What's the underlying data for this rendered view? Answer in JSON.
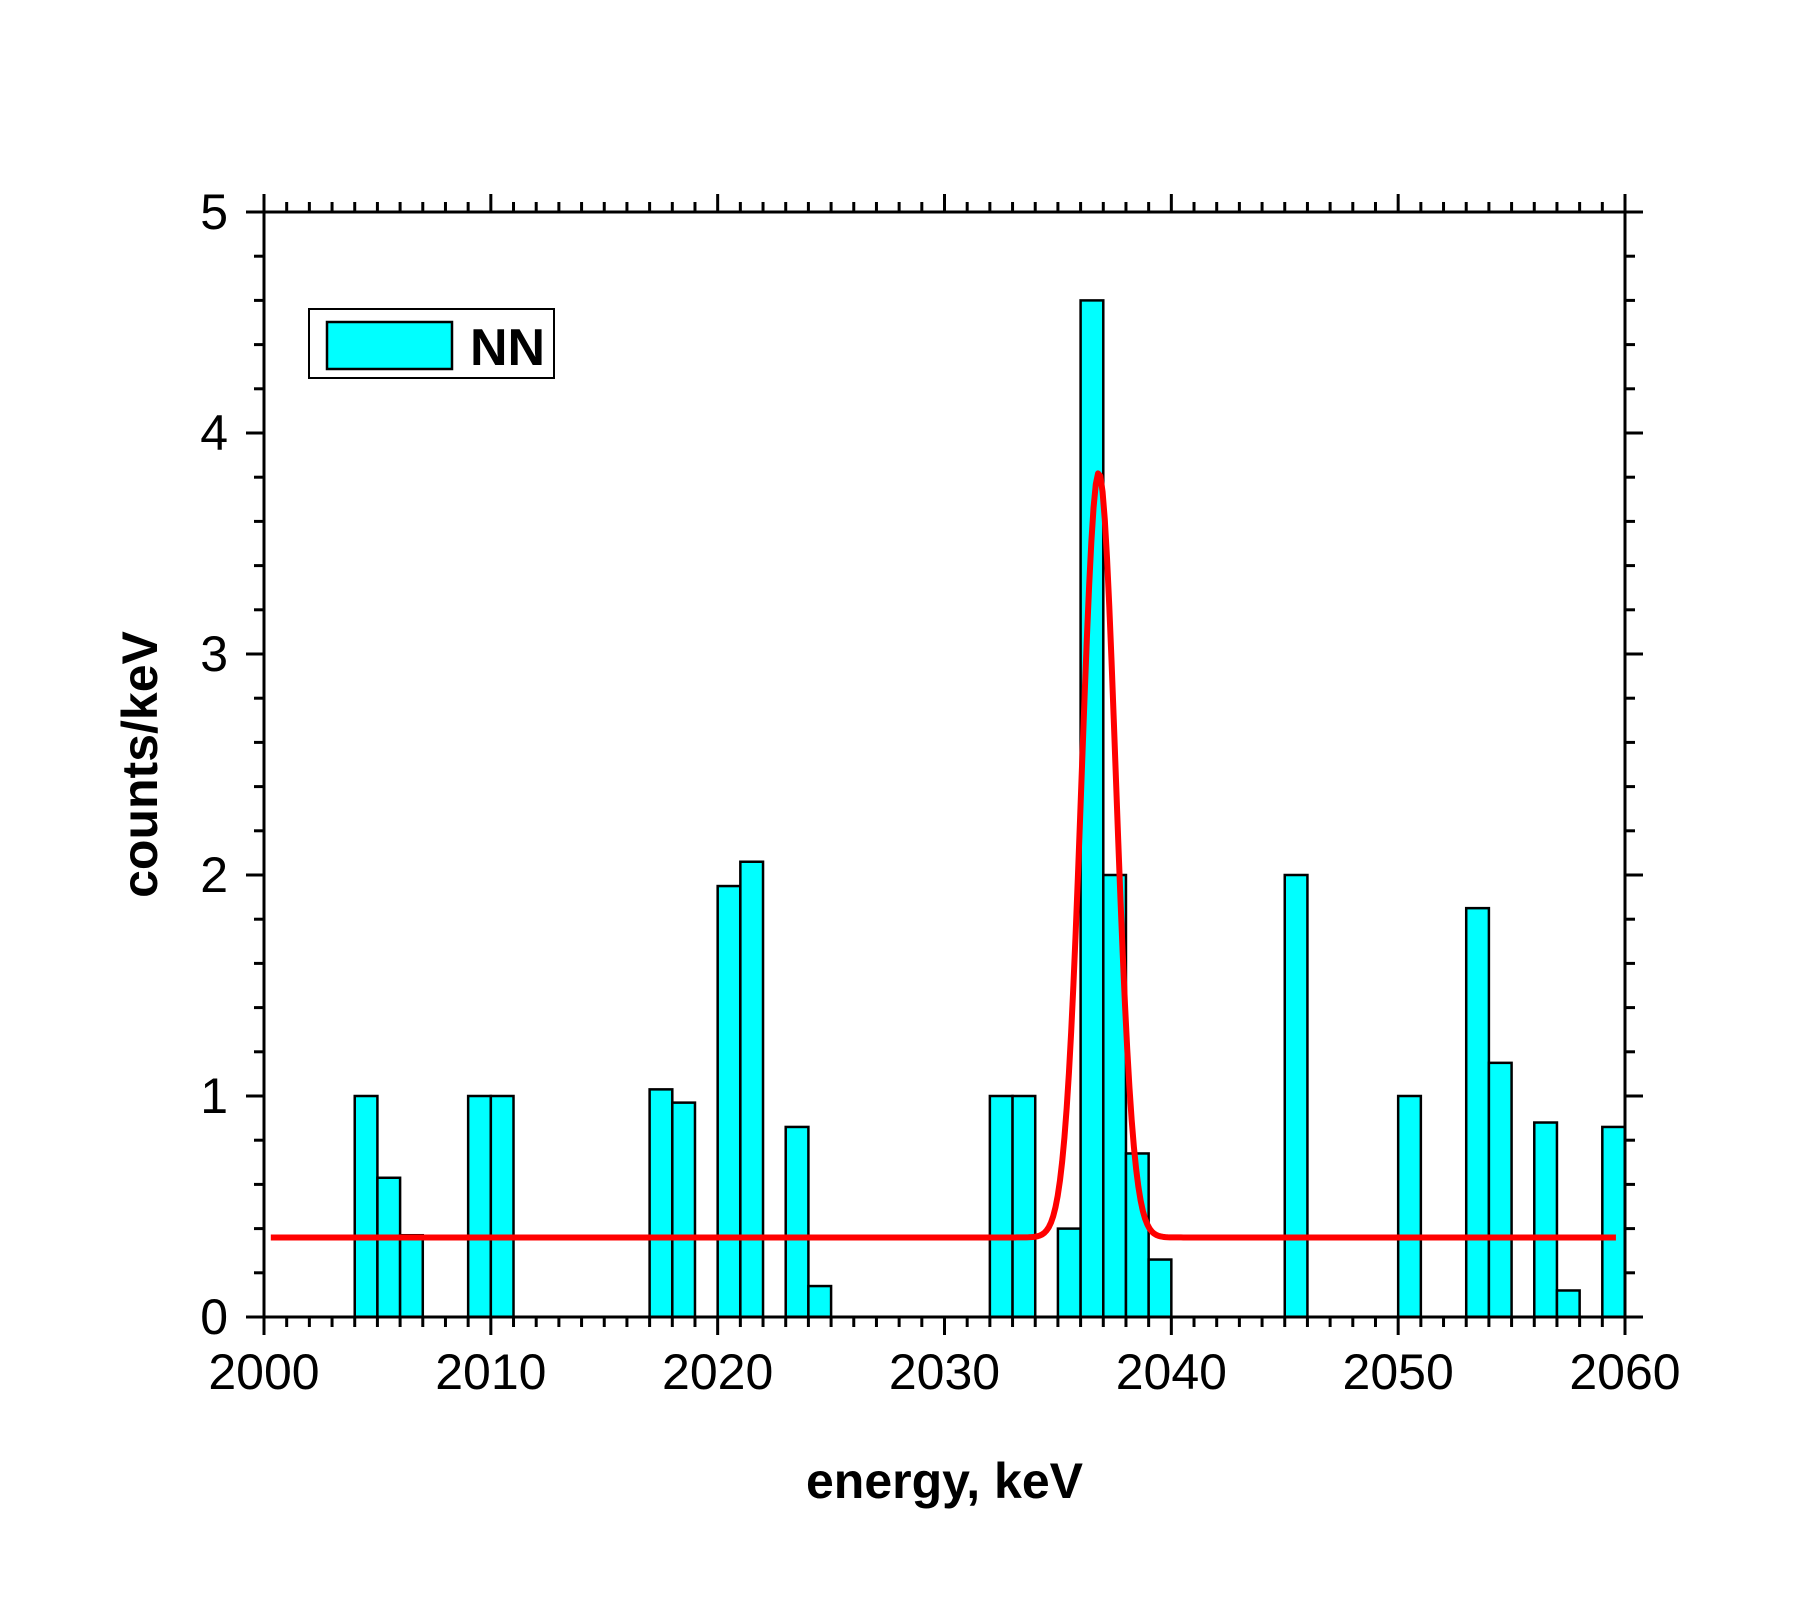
{
  "chart_data": {
    "type": "bar",
    "title": "",
    "xlabel": "energy, keV",
    "ylabel": "counts/keV",
    "xlim": [
      2000,
      2060
    ],
    "ylim": [
      0,
      5
    ],
    "x_ticks": [
      2000,
      2010,
      2020,
      2030,
      2040,
      2050,
      2060
    ],
    "x_tick_labels": [
      "2000",
      "2010",
      "2020",
      "2030",
      "2040",
      "2050",
      "2060"
    ],
    "y_ticks": [
      0,
      1,
      2,
      3,
      4,
      5
    ],
    "y_tick_labels": [
      "0",
      "1",
      "2",
      "3",
      "4",
      "5"
    ],
    "bin_width": 1,
    "series": [
      {
        "name": "NN",
        "type": "bar",
        "color": "#00ffff",
        "edge_color": "#000000",
        "bins": [
          {
            "x": 2004.5,
            "value": 1.0
          },
          {
            "x": 2005.5,
            "value": 0.63
          },
          {
            "x": 2006.5,
            "value": 0.37
          },
          {
            "x": 2009.5,
            "value": 1.0
          },
          {
            "x": 2010.5,
            "value": 1.0
          },
          {
            "x": 2017.5,
            "value": 1.03
          },
          {
            "x": 2018.5,
            "value": 0.97
          },
          {
            "x": 2020.5,
            "value": 1.95
          },
          {
            "x": 2021.5,
            "value": 2.06
          },
          {
            "x": 2023.5,
            "value": 0.86
          },
          {
            "x": 2024.5,
            "value": 0.14
          },
          {
            "x": 2032.5,
            "value": 1.0
          },
          {
            "x": 2033.5,
            "value": 1.0
          },
          {
            "x": 2035.5,
            "value": 0.4
          },
          {
            "x": 2036.5,
            "value": 4.6
          },
          {
            "x": 2037.5,
            "value": 2.0
          },
          {
            "x": 2038.5,
            "value": 0.74
          },
          {
            "x": 2039.5,
            "value": 0.26
          },
          {
            "x": 2045.5,
            "value": 2.0
          },
          {
            "x": 2050.5,
            "value": 1.0
          },
          {
            "x": 2053.5,
            "value": 1.85
          },
          {
            "x": 2054.5,
            "value": 1.15
          },
          {
            "x": 2056.5,
            "value": 0.88
          },
          {
            "x": 2057.5,
            "value": 0.12
          },
          {
            "x": 2059.5,
            "value": 0.86
          }
        ]
      },
      {
        "name": "fit",
        "type": "line",
        "color": "#ff0000",
        "model": "gaussian_plus_constant",
        "baseline": 0.36,
        "amplitude": 3.46,
        "center": 2036.8,
        "sigma": 0.75,
        "x_range": [
          2000.3,
          2059.6
        ]
      }
    ],
    "legend": {
      "position": "top-left",
      "entries": [
        "NN"
      ]
    }
  }
}
